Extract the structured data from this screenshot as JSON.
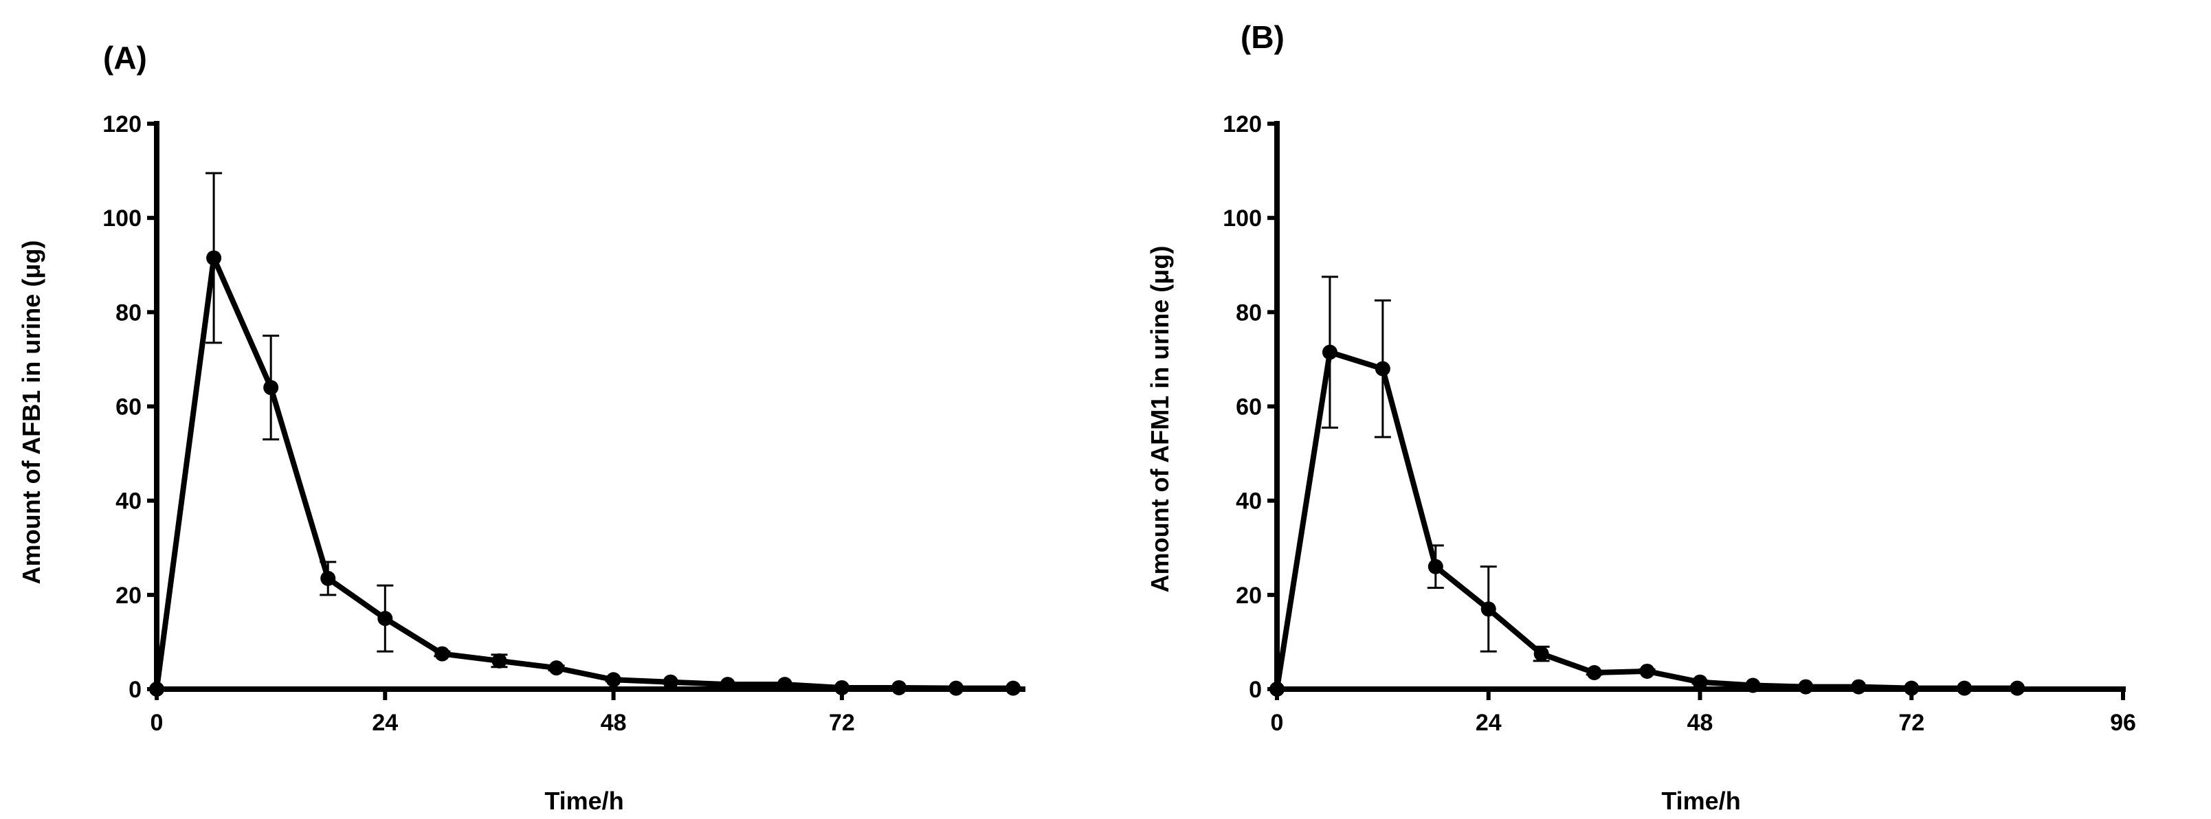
{
  "chart_data": [
    {
      "type": "line",
      "panel_label": "(A)",
      "xlabel": "Time/h",
      "ylabel": "Amount of AFB1 in urine (μg)",
      "xlim": [
        0,
        91
      ],
      "ylim": [
        0,
        120
      ],
      "x_ticks": [
        0,
        24,
        48,
        72
      ],
      "y_ticks": [
        0,
        20,
        40,
        60,
        80,
        100,
        120
      ],
      "series": [
        {
          "x": [
            0,
            6,
            12,
            18,
            24,
            30,
            36,
            42,
            48,
            54,
            60,
            66,
            72,
            78,
            84,
            90
          ],
          "y": [
            0,
            91.5,
            64,
            23.5,
            15,
            7.5,
            6,
            4.5,
            2,
            1.5,
            1,
            1,
            0.3,
            0.3,
            0.2,
            0.2
          ],
          "error": [
            0,
            18,
            11,
            3.5,
            7,
            0.5,
            1.3,
            0.5,
            0.3,
            0.3,
            0.2,
            0.2,
            0.1,
            0.1,
            0.1,
            0.1
          ]
        }
      ]
    },
    {
      "type": "line",
      "panel_label": "(B)",
      "xlabel": "Time/h",
      "ylabel": "Amount of AFM1 in urine (μg)",
      "xlim": [
        0,
        96
      ],
      "ylim": [
        0,
        120
      ],
      "x_ticks": [
        0,
        24,
        48,
        72,
        96
      ],
      "y_ticks": [
        0,
        20,
        40,
        60,
        80,
        100,
        120
      ],
      "series": [
        {
          "x": [
            0,
            6,
            12,
            18,
            24,
            30,
            36,
            42,
            48,
            54,
            60,
            66,
            72,
            78,
            84
          ],
          "y": [
            0,
            71.5,
            68,
            26,
            17,
            7.5,
            3.5,
            3.8,
            1.5,
            0.8,
            0.5,
            0.5,
            0.2,
            0.2,
            0.2
          ],
          "error": [
            0,
            16,
            14.5,
            4.5,
            9,
            1.5,
            0.4,
            0.4,
            0.3,
            0.2,
            0.1,
            0.1,
            0.1,
            0.1,
            0.1
          ]
        }
      ]
    }
  ]
}
